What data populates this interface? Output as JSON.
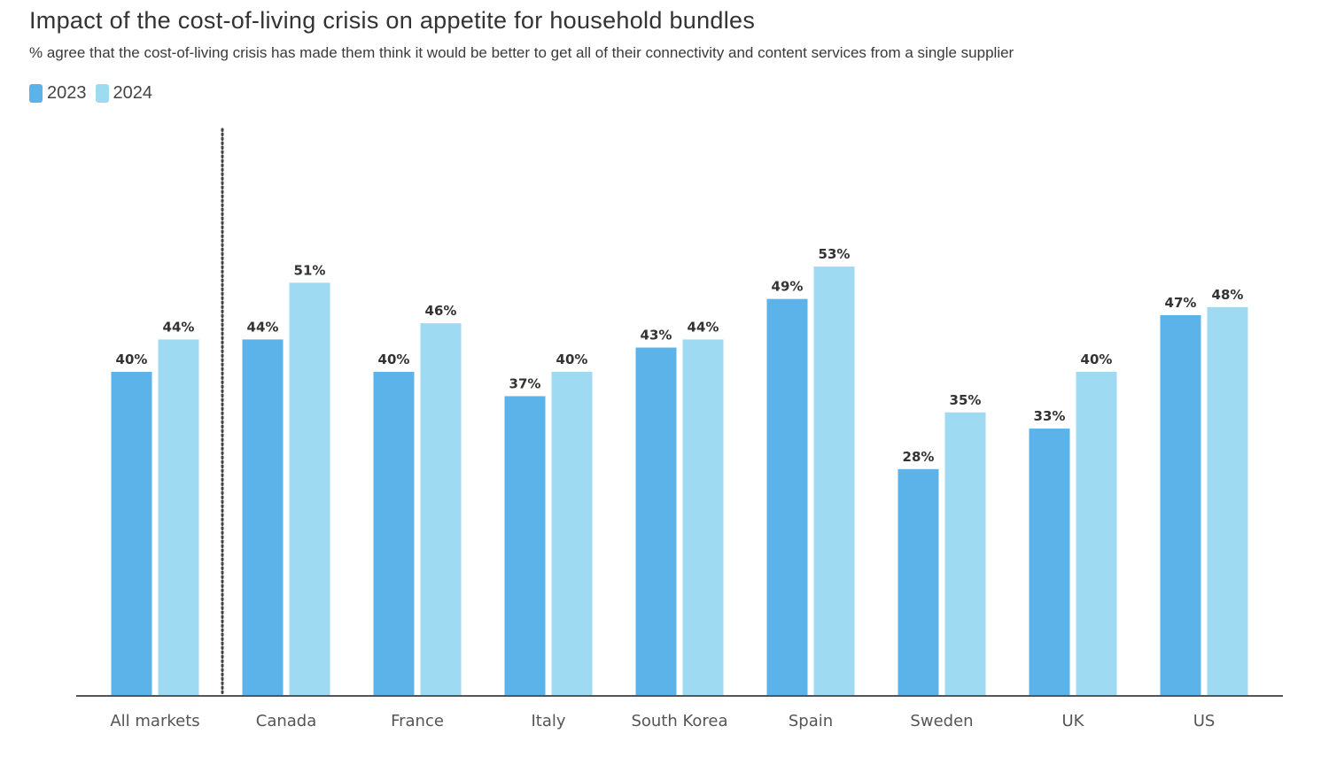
{
  "chart_data": {
    "type": "bar",
    "title": "Impact of the cost-of-living crisis on appetite for household bundles",
    "subtitle": "% agree that the cost-of-living crisis has made them think it would be better to get all of their connectivity and content services from a single supplier",
    "categories": [
      "All markets",
      "Canada",
      "France",
      "Italy",
      "South Korea",
      "Spain",
      "Sweden",
      "UK",
      "US"
    ],
    "series": [
      {
        "name": "2023",
        "color": "#5cb3ea",
        "values": [
          40,
          44,
          40,
          37,
          43,
          49,
          28,
          33,
          47
        ]
      },
      {
        "name": "2024",
        "color": "#9fdaf3",
        "values": [
          44,
          51,
          46,
          40,
          44,
          53,
          35,
          40,
          48
        ]
      }
    ],
    "value_suffix": "%",
    "ylim": [
      0,
      70
    ],
    "xlabel": "",
    "ylabel": "",
    "grid": false,
    "legend_position": "top-left",
    "separator_after_category": "All markets"
  }
}
